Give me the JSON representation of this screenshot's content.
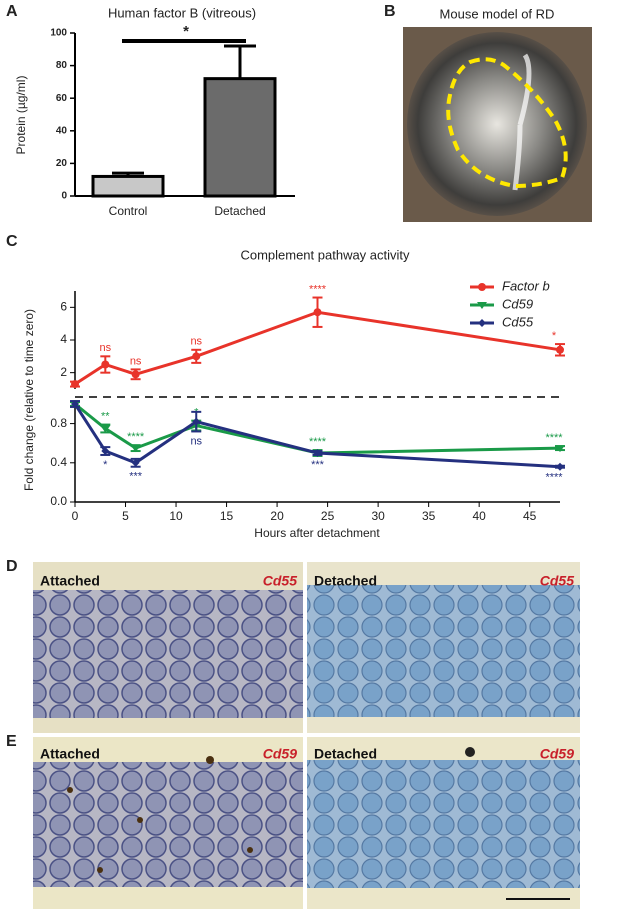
{
  "panel_labels": [
    "A",
    "B",
    "C",
    "D",
    "E"
  ],
  "chart_data": [
    {
      "type": "bar",
      "title": "Human factor B (vitreous)",
      "ylabel": "Protein (µg/ml)",
      "categories": [
        "Control",
        "Detached"
      ],
      "values": [
        12,
        72
      ],
      "errors": [
        2,
        20
      ],
      "colors": [
        "#c8c8c8",
        "#6b6b6b"
      ],
      "ylim": [
        0,
        100
      ],
      "yticks": [
        0,
        20,
        40,
        60,
        80,
        100
      ],
      "annotation": "*"
    },
    {
      "type": "line",
      "title": "Complement pathway activity",
      "xlabel": "Hours after detachment",
      "ylabel": "Fold change (relative to time zero)",
      "x": [
        0,
        3,
        6,
        12,
        24,
        48
      ],
      "xlim": [
        0,
        48
      ],
      "xticks": [
        0,
        5,
        10,
        15,
        20,
        25,
        30,
        35,
        40,
        45
      ],
      "ylim": [
        0,
        1
      ],
      "yticks": [
        {
          "value": 0,
          "label": "0.0"
        },
        0.4,
        0.8
      ],
      "y2lim": [
        1,
        7
      ],
      "y2ticks": [
        2,
        4,
        6
      ],
      "legend": "upper right",
      "series": [
        {
          "name": "Factor b",
          "color": "#e8332a",
          "axis": "y2",
          "marker": "circle",
          "values": [
            1.3,
            2.5,
            1.9,
            3.0,
            5.7,
            3.4
          ],
          "errors": [
            0.15,
            0.5,
            0.3,
            0.4,
            0.9,
            0.35
          ],
          "annotations": [
            null,
            "ns",
            "ns",
            "ns",
            "****",
            "*"
          ]
        },
        {
          "name": "Cd59",
          "color": "#1a9a48",
          "axis": "y",
          "marker": "triangle",
          "values": [
            1,
            0.75,
            0.55,
            0.78,
            0.5,
            0.55
          ],
          "errors": [
            0.02,
            0.04,
            0.03,
            0.05,
            0.03,
            0.02
          ],
          "annotations": [
            null,
            "**",
            "****",
            "*",
            "****",
            "****"
          ]
        },
        {
          "name": "Cd55",
          "color": "#24307f",
          "axis": "y",
          "marker": "diamond",
          "values": [
            1,
            0.52,
            0.4,
            0.82,
            0.5,
            0.36
          ],
          "errors": [
            0.03,
            0.04,
            0.04,
            0.1,
            0.02,
            0.01
          ],
          "annotations": [
            null,
            "*",
            "***",
            "ns",
            "***",
            "****"
          ]
        }
      ]
    }
  ],
  "image_b": {
    "title": "Mouse model of RD"
  },
  "micrographs": [
    {
      "left_label": "Attached",
      "left_gene": "Cd55",
      "right_label": "Detached",
      "right_gene": "Cd55"
    },
    {
      "left_label": "Attached",
      "left_gene": "Cd59",
      "right_label": "Detached",
      "right_gene": "Cd59"
    }
  ]
}
